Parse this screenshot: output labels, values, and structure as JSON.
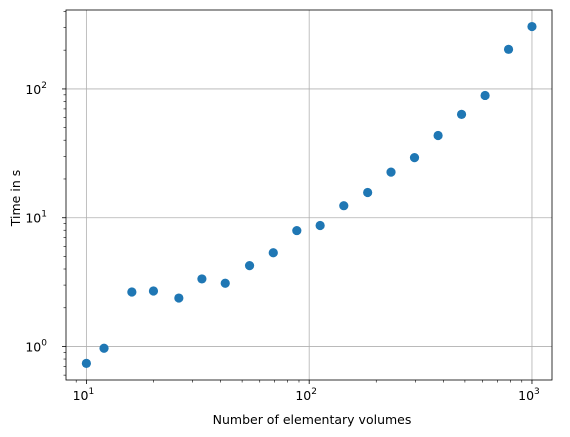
{
  "chart_data": {
    "type": "scatter",
    "title": "",
    "xlabel": "Number of elementary volumes",
    "ylabel": "Time in s",
    "xscale": "log",
    "yscale": "log",
    "xlim": [
      8.1,
      1230
    ],
    "ylim": [
      0.55,
      410
    ],
    "grid": true,
    "marker_color": "#1f77b4",
    "x_ticks": [
      {
        "value": 10,
        "base": "10",
        "exp": "1"
      },
      {
        "value": 100,
        "base": "10",
        "exp": "2"
      },
      {
        "value": 1000,
        "base": "10",
        "exp": "3"
      }
    ],
    "y_ticks": [
      {
        "value": 1,
        "base": "10",
        "exp": "0"
      },
      {
        "value": 10,
        "base": "10",
        "exp": "1"
      },
      {
        "value": 100,
        "base": "10",
        "exp": "2"
      }
    ],
    "series": [
      {
        "x": [
          10,
          12,
          16,
          20,
          26,
          33,
          42,
          54,
          69,
          88,
          112,
          143,
          183,
          233,
          297,
          379,
          483,
          616,
          785,
          1000
        ],
        "y": [
          0.74,
          0.97,
          2.65,
          2.7,
          2.38,
          3.35,
          3.1,
          4.25,
          5.35,
          7.95,
          8.7,
          12.4,
          15.7,
          22.6,
          29.3,
          43.5,
          63.5,
          89,
          203,
          305
        ]
      }
    ]
  }
}
